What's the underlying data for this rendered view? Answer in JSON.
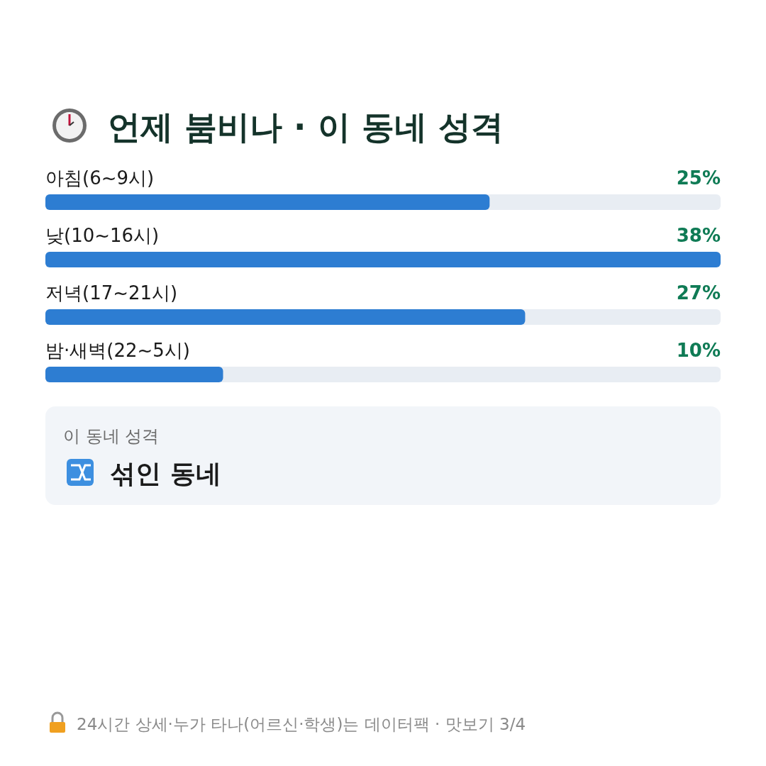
{
  "chart_data": {
    "type": "bar",
    "orientation": "horizontal",
    "title": "언제 붐비나 · 이 동네 성격",
    "categories": [
      "아침(6~9시)",
      "낮(10~16시)",
      "저녁(17~21시)",
      "밤·새벽(22~5시)"
    ],
    "values": [
      25,
      38,
      27,
      10
    ],
    "color": "#2d7dd2",
    "data_labels": true,
    "value_labels": [
      "25%",
      "38%",
      "27%",
      "10%"
    ],
    "annotations": [
      "이 동네 성격",
      "섞인 동네",
      "24시간 상세·누가 타나(어르신·학생)는 데이터팩 · 맛보기 3/4"
    ]
  }
}
